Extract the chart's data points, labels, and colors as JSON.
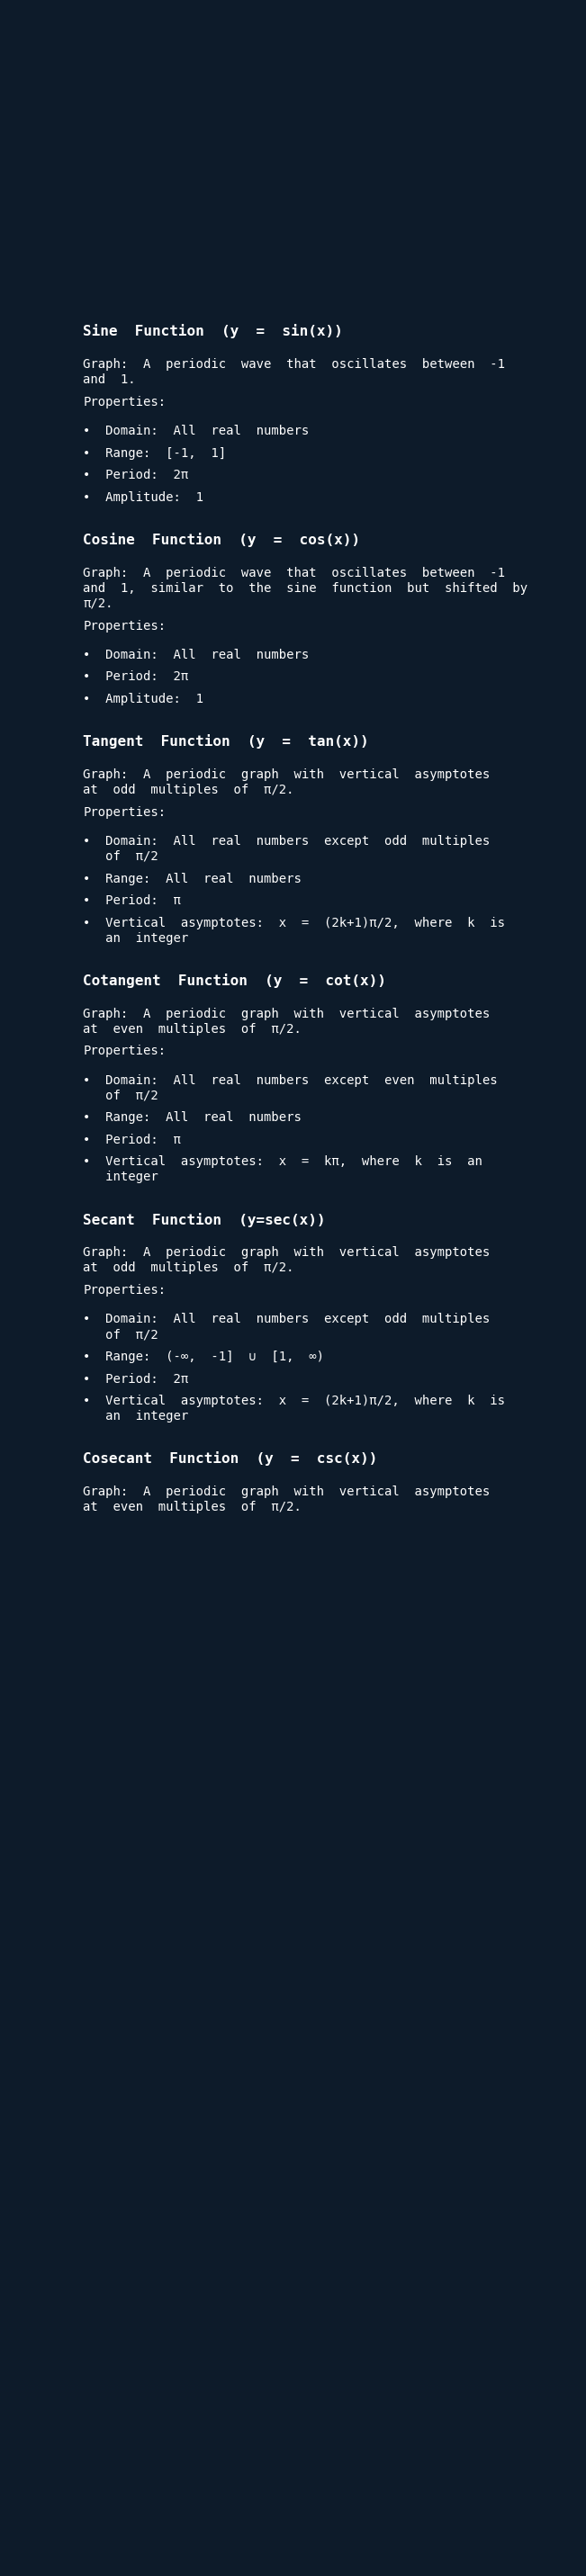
{
  "bg_color": "#0d1b2a",
  "text_color": "#ffffff",
  "title_fontsize": 11.5,
  "body_fontsize": 10.0,
  "sections": [
    {
      "title": "Sine  Function  (y  =  sin(x))",
      "lines": [
        {
          "text": "",
          "type": "gap_small"
        },
        {
          "text": "Graph:  A  periodic  wave  that  oscillates  between  -1",
          "type": "body"
        },
        {
          "text": "and  1.",
          "type": "body"
        },
        {
          "text": "",
          "type": "gap_small"
        },
        {
          "text": "Properties:",
          "type": "body"
        },
        {
          "text": "",
          "type": "gap_small"
        },
        {
          "text": "",
          "type": "gap_small"
        },
        {
          "text": "•  Domain:  All  real  numbers",
          "type": "bullet"
        },
        {
          "text": "",
          "type": "gap_small"
        },
        {
          "text": "•  Range:  [-1,  1]",
          "type": "bullet"
        },
        {
          "text": "",
          "type": "gap_small"
        },
        {
          "text": "•  Period:  2π",
          "type": "bullet"
        },
        {
          "text": "",
          "type": "gap_small"
        },
        {
          "text": "•  Amplitude:  1",
          "type": "bullet"
        }
      ]
    },
    {
      "title": "Cosine  Function  (y  =  cos(x))",
      "lines": [
        {
          "text": "",
          "type": "gap_small"
        },
        {
          "text": "Graph:  A  periodic  wave  that  oscillates  between  -1",
          "type": "body"
        },
        {
          "text": "and  1,  similar  to  the  sine  function  but  shifted  by",
          "type": "body"
        },
        {
          "text": "π/2.",
          "type": "body"
        },
        {
          "text": "",
          "type": "gap_small"
        },
        {
          "text": "Properties:",
          "type": "body"
        },
        {
          "text": "",
          "type": "gap_small"
        },
        {
          "text": "",
          "type": "gap_small"
        },
        {
          "text": "•  Domain:  All  real  numbers",
          "type": "bullet"
        },
        {
          "text": "",
          "type": "gap_small"
        },
        {
          "text": "•  Period:  2π",
          "type": "bullet"
        },
        {
          "text": "",
          "type": "gap_small"
        },
        {
          "text": "•  Amplitude:  1",
          "type": "bullet"
        }
      ]
    },
    {
      "title": "Tangent  Function  (y  =  tan(x))",
      "lines": [
        {
          "text": "",
          "type": "gap_small"
        },
        {
          "text": "Graph:  A  periodic  graph  with  vertical  asymptotes",
          "type": "body"
        },
        {
          "text": "at  odd  multiples  of  π/2.",
          "type": "body"
        },
        {
          "text": "",
          "type": "gap_small"
        },
        {
          "text": "Properties:",
          "type": "body"
        },
        {
          "text": "",
          "type": "gap_small"
        },
        {
          "text": "",
          "type": "gap_small"
        },
        {
          "text": "•  Domain:  All  real  numbers  except  odd  multiples",
          "type": "bullet"
        },
        {
          "text": "   of  π/2",
          "type": "bullet_cont"
        },
        {
          "text": "",
          "type": "gap_small"
        },
        {
          "text": "•  Range:  All  real  numbers",
          "type": "bullet"
        },
        {
          "text": "",
          "type": "gap_small"
        },
        {
          "text": "•  Period:  π",
          "type": "bullet"
        },
        {
          "text": "",
          "type": "gap_small"
        },
        {
          "text": "•  Vertical  asymptotes:  x  =  (2k+1)π/2,  where  k  is",
          "type": "bullet"
        },
        {
          "text": "   an  integer",
          "type": "bullet_cont"
        }
      ]
    },
    {
      "title": "Cotangent  Function  (y  =  cot(x))",
      "lines": [
        {
          "text": "",
          "type": "gap_small"
        },
        {
          "text": "Graph:  A  periodic  graph  with  vertical  asymptotes",
          "type": "body"
        },
        {
          "text": "at  even  multiples  of  π/2.",
          "type": "body"
        },
        {
          "text": "",
          "type": "gap_small"
        },
        {
          "text": "Properties:",
          "type": "body"
        },
        {
          "text": "",
          "type": "gap_small"
        },
        {
          "text": "",
          "type": "gap_small"
        },
        {
          "text": "•  Domain:  All  real  numbers  except  even  multiples",
          "type": "bullet"
        },
        {
          "text": "   of  π/2",
          "type": "bullet_cont"
        },
        {
          "text": "",
          "type": "gap_small"
        },
        {
          "text": "•  Range:  All  real  numbers",
          "type": "bullet"
        },
        {
          "text": "",
          "type": "gap_small"
        },
        {
          "text": "•  Period:  π",
          "type": "bullet"
        },
        {
          "text": "",
          "type": "gap_small"
        },
        {
          "text": "•  Vertical  asymptotes:  x  =  kπ,  where  k  is  an",
          "type": "bullet"
        },
        {
          "text": "   integer",
          "type": "bullet_cont"
        }
      ]
    },
    {
      "title": "Secant  Function  (y=sec(x))",
      "lines": [
        {
          "text": "",
          "type": "gap_small"
        },
        {
          "text": "Graph:  A  periodic  graph  with  vertical  asymptotes",
          "type": "body"
        },
        {
          "text": "at  odd  multiples  of  π/2.",
          "type": "body"
        },
        {
          "text": "",
          "type": "gap_small"
        },
        {
          "text": "Properties:",
          "type": "body"
        },
        {
          "text": "",
          "type": "gap_small"
        },
        {
          "text": "",
          "type": "gap_small"
        },
        {
          "text": "•  Domain:  All  real  numbers  except  odd  multiples",
          "type": "bullet"
        },
        {
          "text": "   of  π/2",
          "type": "bullet_cont"
        },
        {
          "text": "",
          "type": "gap_small"
        },
        {
          "text": "•  Range:  (-∞,  -1]  ∪  [1,  ∞)",
          "type": "bullet"
        },
        {
          "text": "",
          "type": "gap_small"
        },
        {
          "text": "•  Period:  2π",
          "type": "bullet"
        },
        {
          "text": "",
          "type": "gap_small"
        },
        {
          "text": "•  Vertical  asymptotes:  x  =  (2k+1)π/2,  where  k  is",
          "type": "bullet"
        },
        {
          "text": "   an  integer",
          "type": "bullet_cont"
        }
      ]
    },
    {
      "title": "Cosecant  Function  (y  =  csc(x))",
      "lines": [
        {
          "text": "",
          "type": "gap_small"
        },
        {
          "text": "Graph:  A  periodic  graph  with  vertical  asymptotes",
          "type": "body"
        },
        {
          "text": "at  even  multiples  of  π/2.",
          "type": "body"
        }
      ]
    }
  ]
}
